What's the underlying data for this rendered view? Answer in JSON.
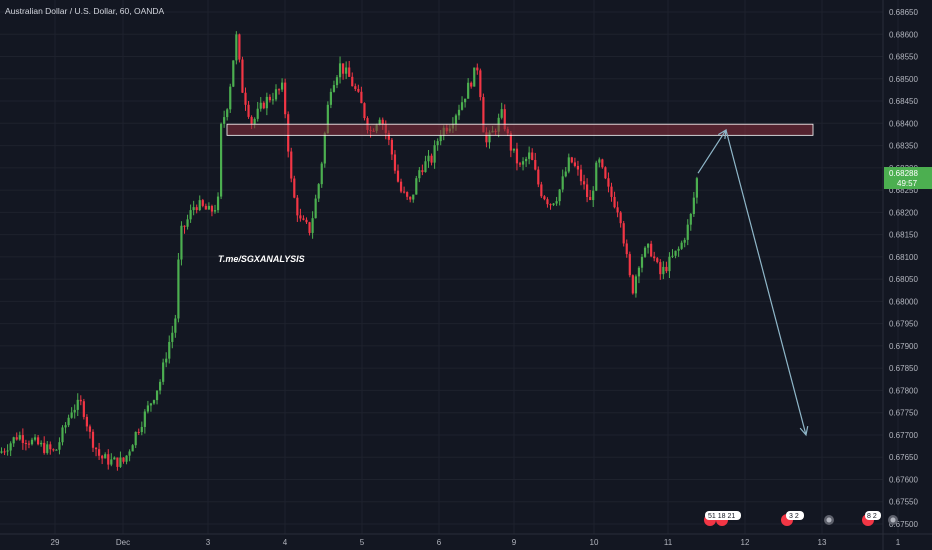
{
  "title": "Australian Dollar / U.S. Dollar, 60, OANDA",
  "watermark": "T.me/SGXANALYSIS",
  "current_price": {
    "value": "0.68288",
    "countdown": "49:57"
  },
  "colors": {
    "background": "#131722",
    "up": "#4caf50",
    "down": "#f23645",
    "zone": "#8b2e3a",
    "arrow": "#8fb7c9",
    "price_tag": "#4caf50"
  },
  "events": [
    "51 18 21",
    "3 2",
    "",
    "8 2",
    ""
  ],
  "chart_data": {
    "type": "candlestick",
    "title": "Australian Dollar / U.S. Dollar, 60, OANDA",
    "xlabel": "",
    "ylabel": "",
    "ylim": [
      0.67495,
      0.6868
    ],
    "y_ticks": [
      "0.68650",
      "0.68600",
      "0.68550",
      "0.68500",
      "0.68450",
      "0.68400",
      "0.68350",
      "0.68300",
      "0.68250",
      "0.68200",
      "0.68150",
      "0.68100",
      "0.68050",
      "0.68000",
      "0.67950",
      "0.67900",
      "0.67850",
      "0.67800",
      "0.67750",
      "0.67700",
      "0.67650",
      "0.67600",
      "0.67550",
      "0.67500"
    ],
    "x_ticks": [
      "29",
      "Dec",
      "3",
      "4",
      "5",
      "6",
      "9",
      "10",
      "11",
      "12",
      "13",
      "1"
    ],
    "anchors": [
      [
        0,
        0.6766
      ],
      [
        18,
        0.677
      ],
      [
        36,
        0.6768
      ],
      [
        55,
        0.6766
      ],
      [
        72,
        0.6776
      ],
      [
        82,
        0.6777
      ],
      [
        90,
        0.677
      ],
      [
        100,
        0.6765
      ],
      [
        112,
        0.6764
      ],
      [
        124,
        0.6764
      ],
      [
        135,
        0.677
      ],
      [
        150,
        0.6777
      ],
      [
        160,
        0.6782
      ],
      [
        168,
        0.679
      ],
      [
        175,
        0.6795
      ],
      [
        180,
        0.6815
      ],
      [
        187,
        0.6818
      ],
      [
        195,
        0.6822
      ],
      [
        210,
        0.682
      ],
      [
        218,
        0.6822
      ],
      [
        220,
        0.6838
      ],
      [
        228,
        0.6845
      ],
      [
        232,
        0.6852
      ],
      [
        236,
        0.686
      ],
      [
        242,
        0.6848
      ],
      [
        252,
        0.684
      ],
      [
        265,
        0.6845
      ],
      [
        283,
        0.6848
      ],
      [
        292,
        0.6825
      ],
      [
        300,
        0.6818
      ],
      [
        310,
        0.6816
      ],
      [
        320,
        0.6828
      ],
      [
        330,
        0.6848
      ],
      [
        340,
        0.6853
      ],
      [
        350,
        0.685
      ],
      [
        360,
        0.6845
      ],
      [
        370,
        0.6838
      ],
      [
        380,
        0.6842
      ],
      [
        390,
        0.6835
      ],
      [
        400,
        0.6825
      ],
      [
        410,
        0.6822
      ],
      [
        420,
        0.683
      ],
      [
        432,
        0.6832
      ],
      [
        440,
        0.6838
      ],
      [
        450,
        0.684
      ],
      [
        462,
        0.6845
      ],
      [
        472,
        0.685
      ],
      [
        478,
        0.6853
      ],
      [
        485,
        0.6835
      ],
      [
        493,
        0.6838
      ],
      [
        502,
        0.6842
      ],
      [
        510,
        0.6835
      ],
      [
        520,
        0.683
      ],
      [
        530,
        0.6833
      ],
      [
        540,
        0.6825
      ],
      [
        550,
        0.6822
      ],
      [
        558,
        0.6824
      ],
      [
        570,
        0.6832
      ],
      [
        580,
        0.6828
      ],
      [
        590,
        0.6822
      ],
      [
        598,
        0.6832
      ],
      [
        608,
        0.6825
      ],
      [
        620,
        0.682
      ],
      [
        625,
        0.6812
      ],
      [
        632,
        0.6802
      ],
      [
        640,
        0.681
      ],
      [
        650,
        0.6812
      ],
      [
        660,
        0.6806
      ],
      [
        670,
        0.6809
      ],
      [
        680,
        0.6812
      ],
      [
        690,
        0.6818
      ],
      [
        698,
        0.6829
      ]
    ],
    "resistance_zone": {
      "from": 0.68373,
      "to": 0.68398,
      "start_date": "3",
      "end_date": "12"
    },
    "projection": [
      [
        "11",
        0.68288
      ],
      [
        "11.5",
        0.68385
      ],
      [
        "12.9",
        0.677
      ]
    ]
  }
}
